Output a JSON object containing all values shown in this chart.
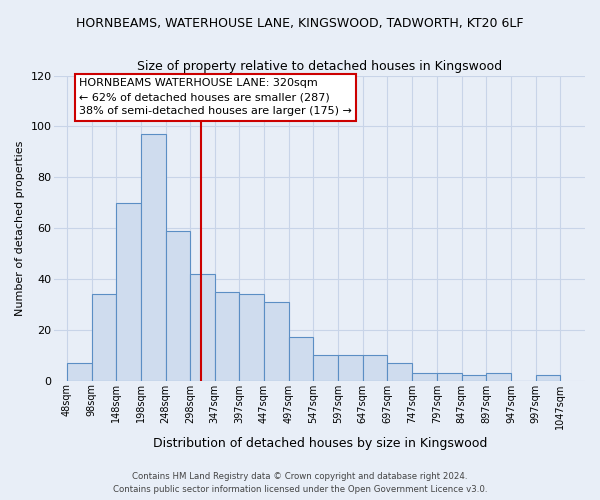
{
  "title1": "HORNBEAMS, WATERHOUSE LANE, KINGSWOOD, TADWORTH, KT20 6LF",
  "title2": "Size of property relative to detached houses in Kingswood",
  "xlabel": "Distribution of detached houses by size in Kingswood",
  "ylabel": "Number of detached properties",
  "bar_left_edges": [
    48,
    98,
    148,
    198,
    248,
    298,
    347,
    397,
    447,
    497,
    547,
    597,
    647,
    697,
    747,
    797,
    847,
    897,
    947,
    997
  ],
  "bar_heights": [
    7,
    34,
    70,
    97,
    59,
    42,
    35,
    34,
    31,
    17,
    10,
    10,
    10,
    7,
    3,
    3,
    2,
    3,
    0,
    2
  ],
  "bar_widths": [
    50,
    50,
    50,
    50,
    50,
    49,
    50,
    50,
    50,
    50,
    50,
    50,
    50,
    50,
    50,
    50,
    50,
    50,
    50,
    50
  ],
  "xtick_labels": [
    "48sqm",
    "98sqm",
    "148sqm",
    "198sqm",
    "248sqm",
    "298sqm",
    "347sqm",
    "397sqm",
    "447sqm",
    "497sqm",
    "547sqm",
    "597sqm",
    "647sqm",
    "697sqm",
    "747sqm",
    "797sqm",
    "847sqm",
    "897sqm",
    "947sqm",
    "997sqm",
    "1047sqm"
  ],
  "xtick_positions": [
    48,
    98,
    148,
    198,
    248,
    298,
    347,
    397,
    447,
    497,
    547,
    597,
    647,
    697,
    747,
    797,
    847,
    897,
    947,
    997,
    1047
  ],
  "ylim": [
    0,
    120
  ],
  "yticks": [
    0,
    20,
    40,
    60,
    80,
    100,
    120
  ],
  "bar_color": "#cfdcee",
  "bar_edge_color": "#5b8ec4",
  "vline_x": 320,
  "vline_color": "#cc0000",
  "annotation_line1": "HORNBEAMS WATERHOUSE LANE: 320sqm",
  "annotation_line2": "← 62% of detached houses are smaller (287)",
  "annotation_line3": "38% of semi-detached houses are larger (175) →",
  "footer1": "Contains HM Land Registry data © Crown copyright and database right 2024.",
  "footer2": "Contains public sector information licensed under the Open Government Licence v3.0.",
  "bg_color": "#e8eef7",
  "plot_bg_color": "#e8eef7",
  "grid_color": "#c8d4e8"
}
